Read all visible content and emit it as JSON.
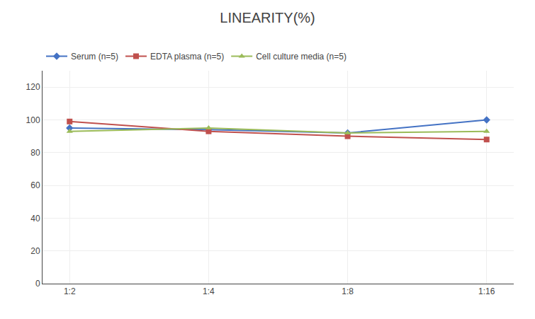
{
  "chart_data": {
    "type": "line",
    "title": "LINEARITY(%)",
    "categories": [
      "1:2",
      "1:4",
      "1:8",
      "1:16"
    ],
    "series": [
      {
        "name": "Serum (n=5)",
        "color": "#4472C4",
        "marker": "diamond",
        "values": [
          95,
          94,
          92,
          100
        ]
      },
      {
        "name": "EDTA plasma (n=5)",
        "color": "#C0504D",
        "marker": "square",
        "values": [
          99,
          93,
          90,
          88
        ]
      },
      {
        "name": "Cell culture media (n=5)",
        "color": "#9BBB59",
        "marker": "triangle-up",
        "values": [
          93,
          95,
          92,
          93
        ]
      }
    ],
    "ylim": [
      0,
      130
    ],
    "yticks": [
      0,
      20,
      40,
      60,
      80,
      100,
      120
    ],
    "grid": true,
    "legend": "top"
  }
}
